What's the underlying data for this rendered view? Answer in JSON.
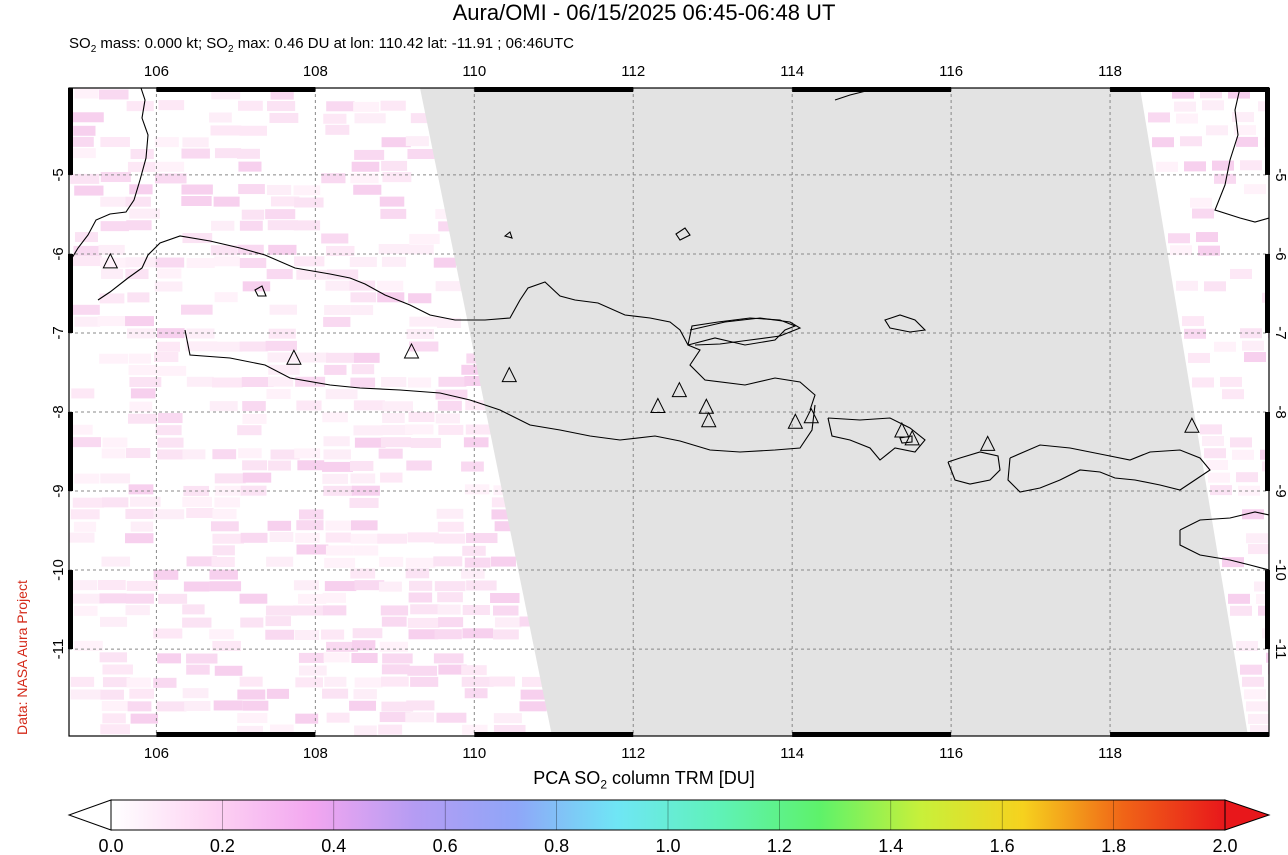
{
  "title": "Aura/OMI - 06/15/2025 06:45-06:48 UT",
  "subtitle": {
    "so2_mass_label": "SO",
    "sub2": "2",
    "mass_text": " mass: 0.000 kt; SO",
    "sub2b": "2",
    "max_text": " max: 0.46 DU at lon: 110.42 lat: -11.91 ; 06:46UTC"
  },
  "credit": "Data: NASA Aura Project",
  "map": {
    "lon_range": [
      104.9,
      120.0
    ],
    "lat_range": [
      -12.1,
      -3.9
    ],
    "lon_ticks": [
      "106",
      "108",
      "110",
      "112",
      "114",
      "116",
      "118"
    ],
    "lat_ticks": [
      "-5",
      "-6",
      "-7",
      "-8",
      "-9",
      "-10",
      "-11"
    ],
    "colors": {
      "no_data": "#e3e3e3",
      "coast": "#000000",
      "grid": "#888888"
    },
    "volcanoes": [
      {
        "lon": 105.42,
        "lat": -6.1
      },
      {
        "lon": 107.73,
        "lat": -7.32
      },
      {
        "lon": 109.21,
        "lat": -7.24
      },
      {
        "lon": 110.44,
        "lat": -7.54
      },
      {
        "lon": 112.31,
        "lat": -7.93
      },
      {
        "lon": 112.58,
        "lat": -7.73
      },
      {
        "lon": 112.92,
        "lat": -7.94
      },
      {
        "lon": 112.95,
        "lat": -8.11
      },
      {
        "lon": 114.04,
        "lat": -8.13
      },
      {
        "lon": 114.24,
        "lat": -8.06
      },
      {
        "lon": 115.38,
        "lat": -8.24
      },
      {
        "lon": 115.51,
        "lat": -8.34
      },
      {
        "lon": 116.46,
        "lat": -8.41
      },
      {
        "lon": 119.03,
        "lat": -8.18
      }
    ]
  },
  "colorbar": {
    "title_pre": "PCA SO",
    "title_sub": "2",
    "title_post": " column TRM [DU]",
    "ticks": [
      "0.0",
      "0.2",
      "0.4",
      "0.6",
      "0.8",
      "1.0",
      "1.2",
      "1.4",
      "1.6",
      "1.8",
      "2.0"
    ],
    "range": [
      0.0,
      2.0
    ],
    "colors": [
      "#ffffff",
      "#fdd3f3",
      "#f2a6f0",
      "#b59cf3",
      "#8fa6f8",
      "#6fe6f5",
      "#5ff2b8",
      "#5ef26a",
      "#c8f03a",
      "#f6d21e",
      "#f06417",
      "#e8171b"
    ]
  }
}
